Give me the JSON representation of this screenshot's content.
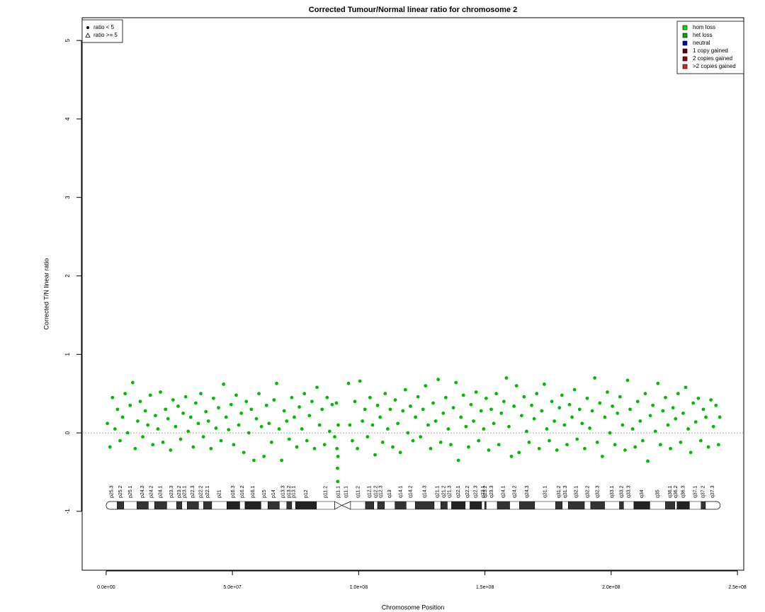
{
  "chart_data": {
    "type": "scatter",
    "title": "Corrected Tumour/Normal linear ratio for chromosome  2",
    "x_label": "Chromosome Position",
    "y_label": "Corrected T/N linear ratio",
    "color": "#00bb00",
    "x": [
      500000.0,
      1500000.0,
      2500000.0,
      3500000.0,
      4500000.0,
      5500000.0,
      6500000.0,
      7500000.0,
      8500000.0,
      9500000.0,
      10500000.0,
      11500000.0,
      12500000.0,
      13500000.0,
      14500000.0,
      15500000.0,
      16500000.0,
      17500000.0,
      18500000.0,
      19500000.0,
      20500000.0,
      21500000.0,
      22500000.0,
      23500000.0,
      24500000.0,
      25500000.0,
      26500000.0,
      27500000.0,
      28500000.0,
      29500000.0,
      30500000.0,
      31500000.0,
      32500000.0,
      33500000.0,
      34500000.0,
      35500000.0,
      36500000.0,
      37500000.0,
      38500000.0,
      39500000.0,
      40500000.0,
      41500000.0,
      42500000.0,
      43500000.0,
      44500000.0,
      45500000.0,
      46500000.0,
      47500000.0,
      48500000.0,
      49500000.0,
      50500000.0,
      51500000.0,
      52500000.0,
      53500000.0,
      54500000.0,
      55500000.0,
      56500000.0,
      57500000.0,
      58500000.0,
      59500000.0,
      60500000.0,
      61500000.0,
      62500000.0,
      63500000.0,
      64500000.0,
      65500000.0,
      66500000.0,
      67500000.0,
      68500000.0,
      69500000.0,
      70500000.0,
      71500000.0,
      72500000.0,
      73500000.0,
      74500000.0,
      75500000.0,
      76500000.0,
      77500000.0,
      78500000.0,
      79500000.0,
      80500000.0,
      81500000.0,
      82500000.0,
      83500000.0,
      84500000.0,
      85500000.0,
      86500000.0,
      87500000.0,
      88500000.0,
      89500000.0,
      90500000.0,
      91200000.0,
      91400000.0,
      91600000.0,
      91700000.0,
      91800000.0,
      91900000.0,
      96000000.0,
      96500000.0,
      97500000.0,
      98500000.0,
      99500000.0,
      100500000.0,
      101500000.0,
      102500000.0,
      103500000.0,
      104500000.0,
      105500000.0,
      106500000.0,
      107500000.0,
      108500000.0,
      109500000.0,
      110500000.0,
      111500000.0,
      112500000.0,
      113500000.0,
      114500000.0,
      115500000.0,
      116500000.0,
      117500000.0,
      118500000.0,
      119500000.0,
      120500000.0,
      121500000.0,
      122500000.0,
      123500000.0,
      124500000.0,
      125500000.0,
      126500000.0,
      127500000.0,
      128500000.0,
      129500000.0,
      130500000.0,
      131500000.0,
      132500000.0,
      133500000.0,
      134500000.0,
      135500000.0,
      136500000.0,
      137500000.0,
      138500000.0,
      139500000.0,
      140500000.0,
      141500000.0,
      142500000.0,
      143500000.0,
      144500000.0,
      145500000.0,
      146500000.0,
      147500000.0,
      148500000.0,
      149500000.0,
      150500000.0,
      151500000.0,
      152500000.0,
      153500000.0,
      154500000.0,
      155500000.0,
      156500000.0,
      157500000.0,
      158500000.0,
      159500000.0,
      160500000.0,
      161500000.0,
      162500000.0,
      163500000.0,
      164500000.0,
      165500000.0,
      166500000.0,
      167500000.0,
      168500000.0,
      169500000.0,
      170500000.0,
      171500000.0,
      172500000.0,
      173500000.0,
      174500000.0,
      175500000.0,
      176500000.0,
      177500000.0,
      178500000.0,
      179500000.0,
      180500000.0,
      181500000.0,
      182500000.0,
      183500000.0,
      184500000.0,
      185500000.0,
      186500000.0,
      187500000.0,
      188500000.0,
      189500000.0,
      190500000.0,
      191500000.0,
      192500000.0,
      193500000.0,
      194500000.0,
      195500000.0,
      196500000.0,
      197500000.0,
      198500000.0,
      199500000.0,
      200500000.0,
      201500000.0,
      202500000.0,
      203500000.0,
      204500000.0,
      205500000.0,
      206500000.0,
      207500000.0,
      208500000.0,
      209500000.0,
      210500000.0,
      211500000.0,
      212500000.0,
      213500000.0,
      214500000.0,
      215500000.0,
      216500000.0,
      217500000.0,
      218500000.0,
      219500000.0,
      220500000.0,
      221500000.0,
      222500000.0,
      223500000.0,
      224500000.0,
      225500000.0,
      226500000.0,
      227500000.0,
      228500000.0,
      229500000.0,
      230500000.0,
      231500000.0,
      232500000.0,
      233500000.0,
      234500000.0,
      235500000.0,
      236500000.0,
      237500000.0,
      238500000.0,
      239500000.0,
      240500000.0,
      241500000.0,
      242500000.0,
      243000000.0
    ],
    "y": [
      0.12,
      -0.18,
      0.45,
      0.05,
      0.3,
      -0.1,
      0.2,
      0.5,
      0.0,
      0.35,
      0.64,
      -0.2,
      0.15,
      0.4,
      -0.05,
      0.28,
      0.1,
      0.48,
      -0.15,
      0.22,
      0.05,
      0.52,
      -0.12,
      0.3,
      0.18,
      -0.22,
      0.42,
      0.08,
      0.34,
      -0.08,
      0.25,
      0.46,
      0.02,
      0.2,
      -0.18,
      0.38,
      0.12,
      0.5,
      -0.05,
      0.27,
      0.15,
      -0.2,
      0.44,
      0.06,
      0.32,
      -0.1,
      0.62,
      0.2,
      0.04,
      0.36,
      -0.15,
      0.48,
      0.1,
      0.25,
      -0.25,
      0.4,
      0.0,
      0.3,
      -0.35,
      0.18,
      0.5,
      0.08,
      -0.3,
      0.35,
      0.12,
      -0.12,
      0.42,
      0.63,
      0.05,
      -0.35,
      0.28,
      0.15,
      -0.08,
      0.45,
      0.2,
      -0.18,
      0.33,
      0.05,
      0.5,
      -0.1,
      0.22,
      0.4,
      -0.2,
      0.58,
      0.1,
      0.3,
      -0.15,
      0.45,
      0.02,
      0.36,
      -0.05,
      0.38,
      -0.2,
      -0.45,
      -0.62,
      -0.3,
      0.1,
      0.63,
      0.1,
      -0.1,
      0.4,
      -0.2,
      0.66,
      0.15,
      0.3,
      -0.05,
      0.45,
      0.1,
      -0.28,
      0.35,
      0.2,
      -0.12,
      0.5,
      0.05,
      0.3,
      -0.18,
      0.42,
      0.12,
      -0.25,
      0.28,
      0.55,
      0.0,
      0.34,
      -0.1,
      0.2,
      0.46,
      -0.05,
      0.3,
      0.6,
      0.1,
      -0.2,
      0.38,
      0.15,
      0.68,
      -0.12,
      0.25,
      0.45,
      0.05,
      -0.15,
      0.32,
      0.64,
      -0.35,
      0.2,
      0.48,
      0.08,
      -0.18,
      0.36,
      0.15,
      0.52,
      -0.1,
      0.28,
      0.05,
      0.44,
      -0.22,
      0.3,
      0.12,
      0.5,
      -0.15,
      0.25,
      0.4,
      0.7,
      0.08,
      -0.3,
      0.34,
      0.6,
      -0.25,
      0.22,
      0.46,
      0.02,
      -0.12,
      0.35,
      0.18,
      0.5,
      -0.2,
      0.28,
      0.62,
      0.05,
      -0.1,
      0.4,
      0.15,
      -0.22,
      0.32,
      0.48,
      0.1,
      -0.15,
      0.36,
      0.2,
      0.55,
      -0.08,
      0.3,
      0.12,
      -0.2,
      0.44,
      0.06,
      0.28,
      0.7,
      -0.12,
      0.38,
      -0.3,
      0.2,
      0.52,
      0.0,
      0.34,
      -0.15,
      0.25,
      0.46,
      0.1,
      -0.22,
      0.67,
      0.3,
      0.05,
      -0.18,
      0.4,
      0.15,
      -0.1,
      0.5,
      -0.36,
      0.22,
      0.35,
      0.02,
      0.63,
      -0.15,
      0.28,
      0.45,
      0.1,
      -0.2,
      0.32,
      0.18,
      0.5,
      -0.12,
      0.25,
      0.58,
      0.05,
      -0.25,
      0.38,
      0.14,
      0.44,
      -0.1,
      0.3,
      0.2,
      -0.18,
      0.42,
      0.08,
      0.35,
      -0.15,
      0.2
    ],
    "xlim": [
      -9500000.0,
      252500000.0
    ],
    "ylim": [
      -1.75,
      5.29
    ],
    "xticks": [
      {
        "value": 0,
        "label": "0.0e+00"
      },
      {
        "value": 50000000.0,
        "label": "5.0e+07"
      },
      {
        "value": 100000000.0,
        "label": "1.0e+08"
      },
      {
        "value": 150000000.0,
        "label": "1.5e+08"
      },
      {
        "value": 200000000.0,
        "label": "2.0e+08"
      },
      {
        "value": 250000000.0,
        "label": "2.5e+08"
      }
    ],
    "yticks": [
      -1,
      0,
      1,
      2,
      3,
      4,
      5
    ],
    "hline": 0,
    "shape_legend": {
      "labels": [
        "ratio < 5",
        "ratio >= 5"
      ],
      "corner": "top-left"
    },
    "state_legend": {
      "labels": [
        "hom loss",
        "het loss",
        "neutral",
        "1 copy gained",
        "2 copies gained",
        ">2 copies gained"
      ],
      "colors": [
        "#00dd00",
        "#00aa00",
        "#0000aa",
        "#660000",
        "#990000",
        "#dd2222"
      ],
      "corner": "top-right"
    },
    "ideogram": {
      "names": [
        "p25.3",
        "p25.2",
        "p25.1",
        "p24.3",
        "p24.2",
        "p24.1",
        "p23.3",
        "p23.2",
        "p23.1",
        "p22.3",
        "p22.2",
        "p22.1",
        "p21",
        "p16.3",
        "p16.2",
        "p16.1",
        "p15",
        "p14",
        "p13.3",
        "p13.2",
        "p13.1",
        "p12",
        "p11.2",
        "p11.1",
        "q11.1",
        "q11.2",
        "q12.1",
        "q12.2",
        "q12.3",
        "q13",
        "q14.1",
        "q14.2",
        "q14.3",
        "q21.1",
        "q21.2",
        "q21.3",
        "q22.1",
        "q22.2",
        "q22.3",
        "q23.1",
        "q23.2",
        "q23.3",
        "q24.1",
        "q24.2",
        "q24.3",
        "q31.1",
        "q31.2",
        "q31.3",
        "q32.1",
        "q32.2",
        "q32.3",
        "q33.1",
        "q33.2",
        "q33.3",
        "q34",
        "q35",
        "q36.1",
        "q36.2",
        "q36.3",
        "q37.1",
        "q37.2",
        "q37.3"
      ],
      "starts": [
        0,
        4400000.0,
        7000000.0,
        12200000.0,
        16700000.0,
        19200000.0,
        24000000.0,
        27900000.0,
        30000000.0,
        32100000.0,
        36600000.0,
        38600000.0,
        41800000.0,
        47800000.0,
        52900000.0,
        55000000.0,
        61300000.0,
        64100000.0,
        68600000.0,
        71500000.0,
        73500000.0,
        75000000.0,
        83300000.0,
        90500000.0,
        93300000.0,
        96800000.0,
        102700000.0,
        106000000.0,
        107500000.0,
        110200000.0,
        114400000.0,
        118800000.0,
        122400000.0,
        129900000.0,
        132500000.0,
        135100000.0,
        136800000.0,
        142200000.0,
        144100000.0,
        148700000.0,
        149900000.0,
        150500000.0,
        154900000.0,
        159800000.0,
        163700000.0,
        169700000.0,
        178000000.0,
        180600000.0,
        183000000.0,
        189400000.0,
        191900000.0,
        197400000.0,
        203300000.0,
        204900000.0,
        209000000.0,
        215300000.0,
        221500000.0,
        225200000.0,
        226100000.0,
        231000000.0,
        235600000.0,
        237300000.0
      ],
      "ends": [
        4400000.0,
        7000000.0,
        12200000.0,
        16700000.0,
        19200000.0,
        24000000.0,
        27900000.0,
        30000000.0,
        32100000.0,
        36600000.0,
        38600000.0,
        41800000.0,
        47800000.0,
        52900000.0,
        55000000.0,
        61300000.0,
        64100000.0,
        68600000.0,
        71500000.0,
        73500000.0,
        75000000.0,
        83300000.0,
        90500000.0,
        93300000.0,
        96800000.0,
        102700000.0,
        106000000.0,
        107500000.0,
        110200000.0,
        114400000.0,
        118800000.0,
        122400000.0,
        129900000.0,
        132500000.0,
        135100000.0,
        136800000.0,
        142200000.0,
        144100000.0,
        148700000.0,
        149900000.0,
        150500000.0,
        154900000.0,
        159800000.0,
        163700000.0,
        169700000.0,
        178000000.0,
        180600000.0,
        183000000.0,
        189400000.0,
        191900000.0,
        197400000.0,
        203300000.0,
        204900000.0,
        209000000.0,
        215300000.0,
        221500000.0,
        225200000.0,
        226100000.0,
        231000000.0,
        235600000.0,
        237300000.0,
        243200000.0
      ],
      "stains": [
        "gneg",
        "gpos50",
        "gneg",
        "gpos75",
        "gneg",
        "gpos75",
        "gneg",
        "gpos25",
        "gneg",
        "gpos75",
        "gneg",
        "gpos50",
        "gneg",
        "gpos100",
        "gneg",
        "gpos100",
        "gneg",
        "gpos50",
        "gneg",
        "gpos50",
        "gneg",
        "gpos100",
        "gneg",
        "acen",
        "acen",
        "gneg",
        "gpos50",
        "gneg",
        "gpos25",
        "gneg",
        "gpos50",
        "gneg",
        "gpos50",
        "gneg",
        "gpos25",
        "gneg",
        "gpos100",
        "gneg",
        "gpos100",
        "gneg",
        "gpos25",
        "gneg",
        "gpos75",
        "gneg",
        "gpos75",
        "gneg",
        "gpos50",
        "gneg",
        "gpos75",
        "gneg",
        "gpos75",
        "gneg",
        "gpos50",
        "gneg",
        "gpos100",
        "gneg",
        "gpos75",
        "gneg",
        "gpos100",
        "gneg",
        "gpos50",
        "gneg"
      ]
    }
  }
}
